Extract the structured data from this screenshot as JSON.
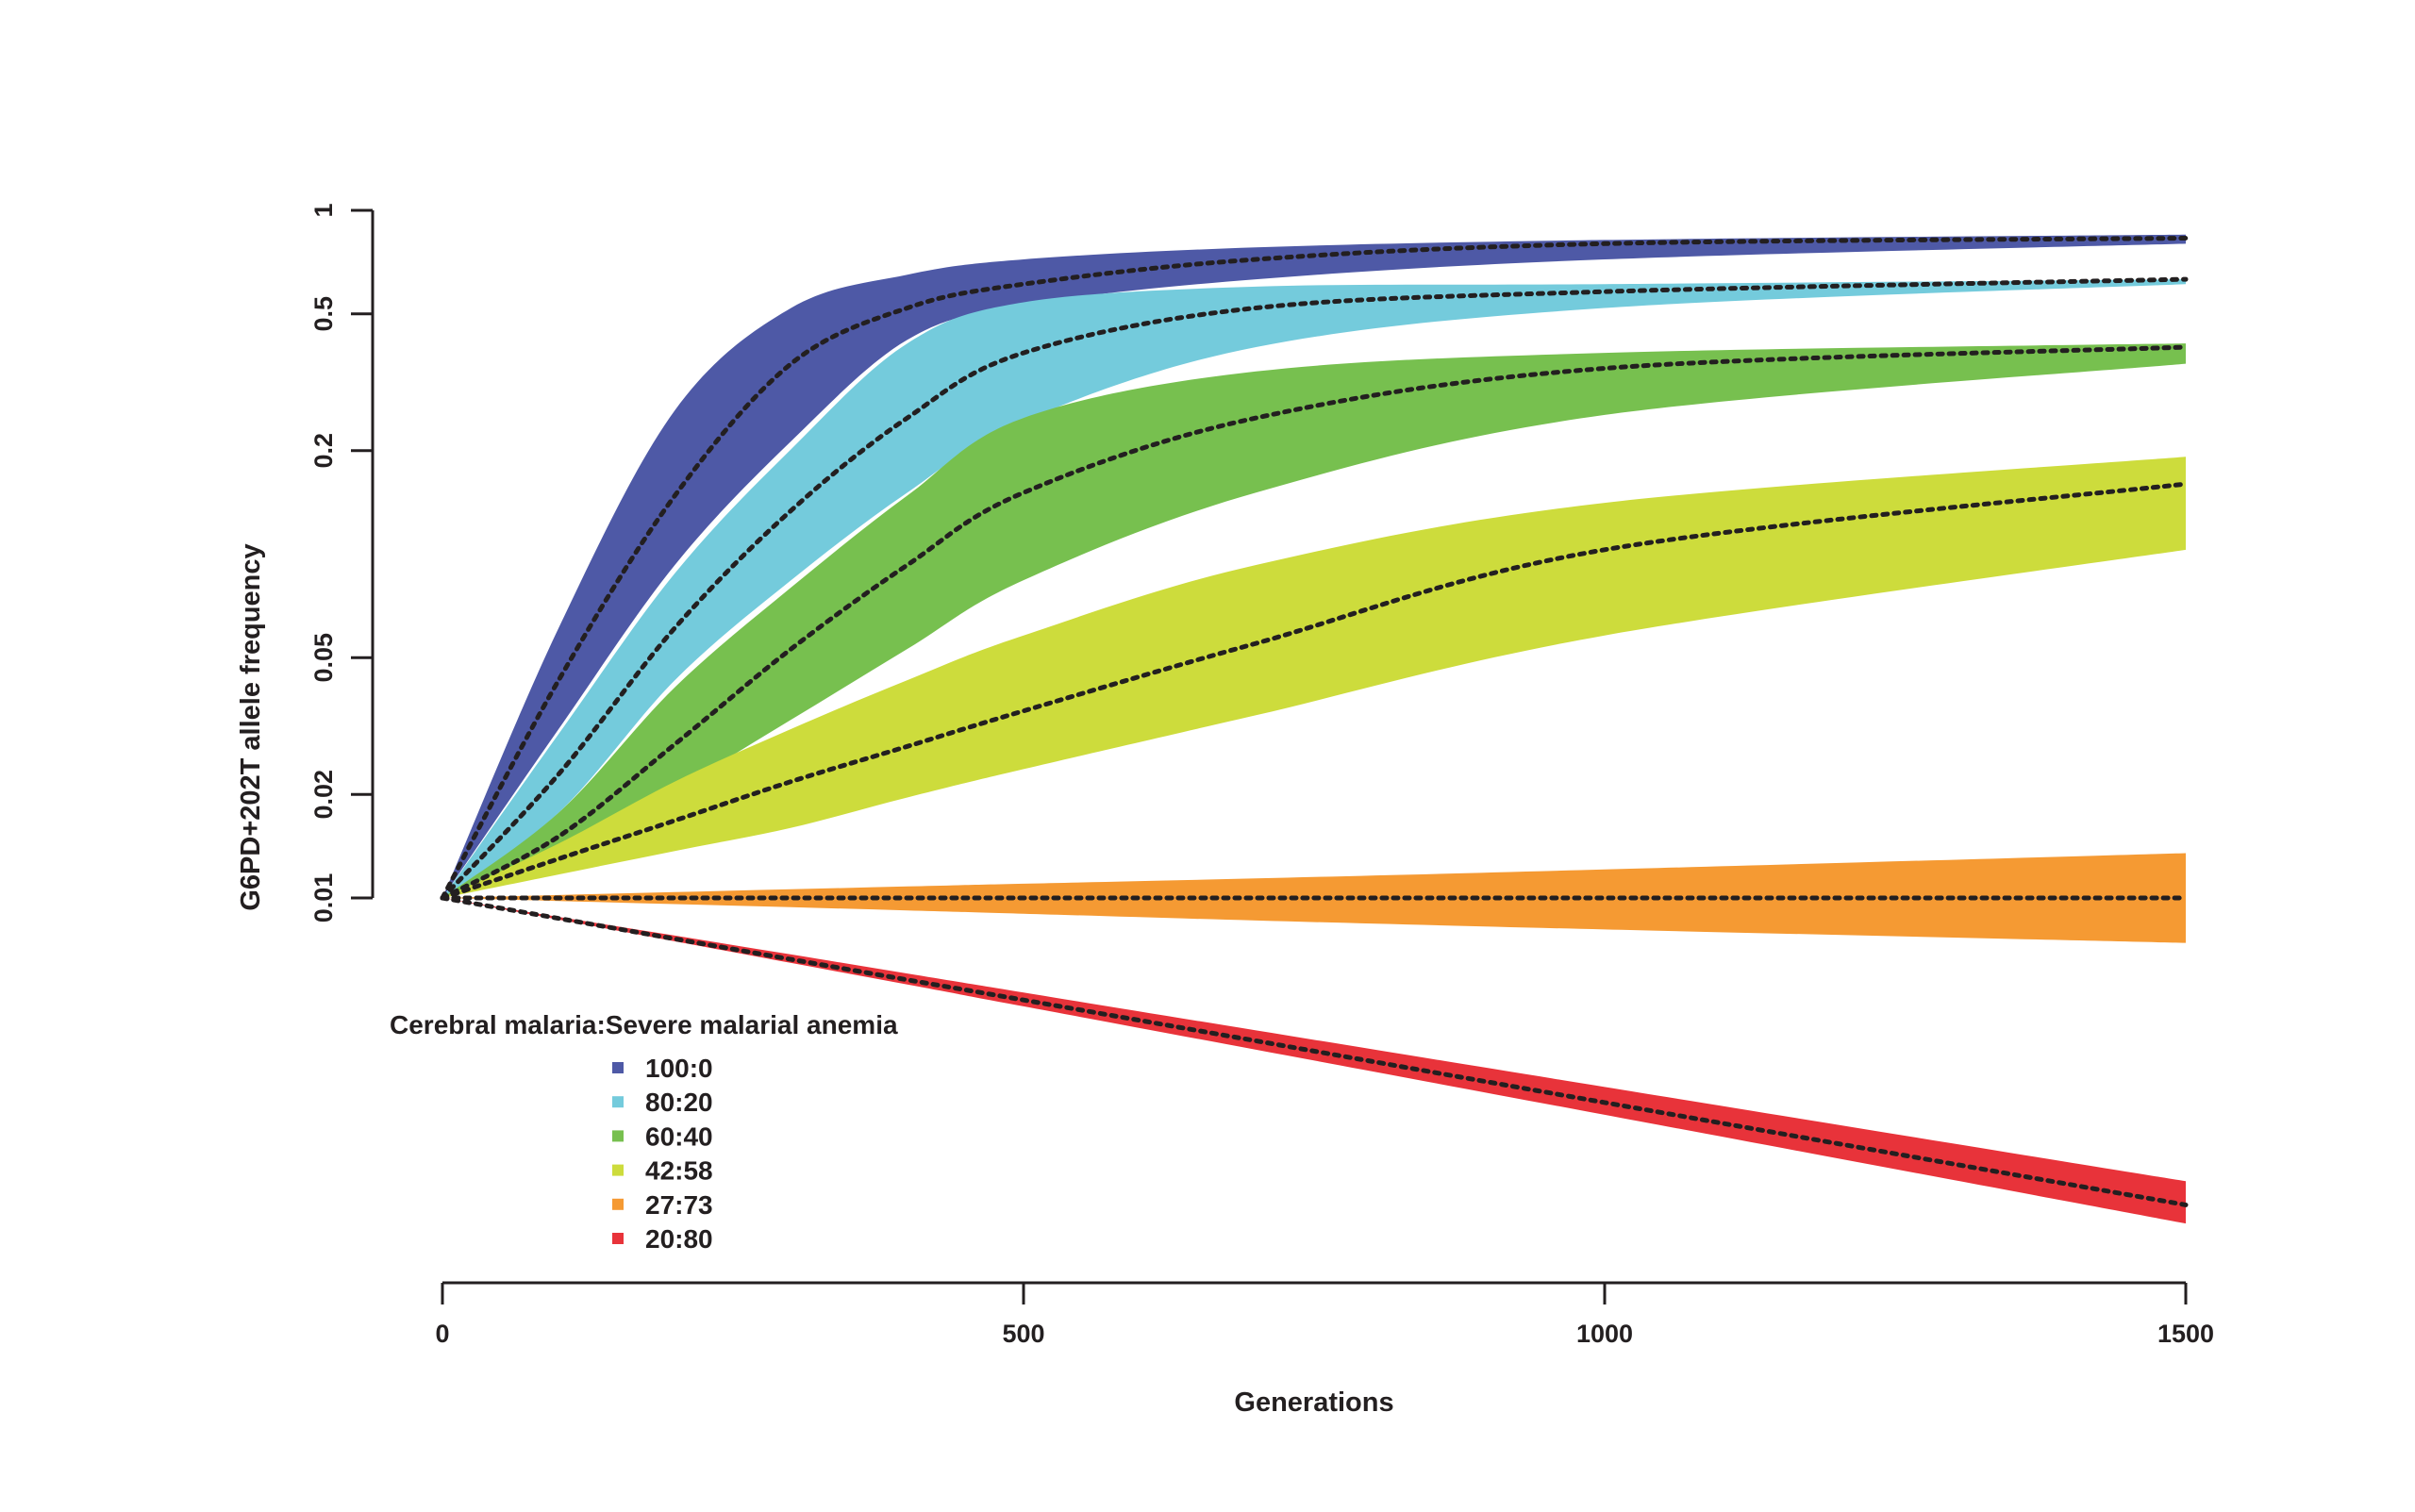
{
  "chart_data": {
    "type": "area",
    "title": "",
    "xlabel": "Generations",
    "ylabel": "G6PD+202T allele frequency",
    "xlim": [
      0,
      1500
    ],
    "ylim": [
      0.001,
      1
    ],
    "y_scale": "log",
    "grid": false,
    "x_ticks": [
      0,
      500,
      1000,
      1500
    ],
    "x_tick_labels": [
      "0",
      "500",
      "1000",
      "1500"
    ],
    "y_ticks": [
      1,
      0.5,
      0.2,
      0.05,
      0.02,
      0.01
    ],
    "y_tick_labels": [
      "1",
      "0.5",
      "0.2",
      "0.05",
      "0.02",
      "0.01"
    ],
    "legend": {
      "title": "Cerebral malaria:Severe malarial anemia",
      "placement": "bottom-left"
    },
    "x": [
      0,
      100,
      200,
      300,
      400,
      500,
      700,
      1000,
      1500
    ],
    "series": [
      {
        "name": "100:0",
        "color": "#4e59a6",
        "upper": [
          0.01,
          0.061,
          0.262,
          0.52,
          0.65,
          0.72,
          0.78,
          0.82,
          0.85
        ],
        "mean": [
          0.01,
          0.043,
          0.148,
          0.358,
          0.52,
          0.61,
          0.72,
          0.8,
          0.83
        ],
        "lower": [
          0.01,
          0.031,
          0.093,
          0.213,
          0.42,
          0.53,
          0.63,
          0.72,
          0.8
        ]
      },
      {
        "name": "80:20",
        "color": "#74cbdc",
        "upper": [
          0.01,
          0.03,
          0.088,
          0.202,
          0.41,
          0.54,
          0.6,
          0.61,
          0.63
        ],
        "mean": [
          0.01,
          0.0229,
          0.061,
          0.134,
          0.249,
          0.385,
          0.52,
          0.58,
          0.63
        ],
        "lower": [
          0.01,
          0.0177,
          0.043,
          0.084,
          0.151,
          0.244,
          0.4,
          0.52,
          0.61
        ]
      },
      {
        "name": "60:40",
        "color": "#77c04f",
        "upper": [
          0.01,
          0.0177,
          0.041,
          0.08,
          0.148,
          0.249,
          0.34,
          0.385,
          0.41
        ],
        "mean": [
          0.01,
          0.0151,
          0.028,
          0.053,
          0.093,
          0.151,
          0.249,
          0.347,
          0.4
        ],
        "lower": [
          0.01,
          0.0137,
          0.0207,
          0.033,
          0.053,
          0.084,
          0.151,
          0.254,
          0.358
        ]
      },
      {
        "name": "42:58",
        "color": "#cddc3c",
        "upper": [
          0.01,
          0.0144,
          0.0218,
          0.031,
          0.043,
          0.058,
          0.093,
          0.141,
          0.192
        ],
        "mean": [
          0.01,
          0.013,
          0.0168,
          0.0218,
          0.0276,
          0.035,
          0.055,
          0.103,
          0.16
        ],
        "lower": [
          0.01,
          0.0117,
          0.0137,
          0.016,
          0.0196,
          0.0237,
          0.034,
          0.058,
          0.103
        ]
      },
      {
        "name": "27:73",
        "color": "#f59a33",
        "upper": [
          0.01,
          0.0102,
          0.0104,
          0.0106,
          0.0108,
          0.011,
          0.0114,
          0.0121,
          0.0135
        ],
        "mean": [
          0.01,
          0.01,
          0.01,
          0.01,
          0.01,
          0.01,
          0.01,
          0.01,
          0.01
        ],
        "lower": [
          0.01,
          0.0098,
          0.0096,
          0.0094,
          0.0092,
          0.009,
          0.0086,
          0.0081,
          0.0074
        ]
      },
      {
        "name": "20:80",
        "color": "#e8333a",
        "upper": [
          0.01,
          0.00881,
          0.00777,
          0.00685,
          0.00603,
          0.00531,
          0.00412,
          0.00282,
          0.0015
        ],
        "mean": [
          0.01,
          0.00872,
          0.0076,
          0.00663,
          0.00578,
          0.00505,
          0.00384,
          0.00254,
          0.00128
        ],
        "lower": [
          0.01,
          0.00865,
          0.00748,
          0.00647,
          0.0056,
          0.00484,
          0.00362,
          0.00234,
          0.00113
        ]
      }
    ]
  }
}
